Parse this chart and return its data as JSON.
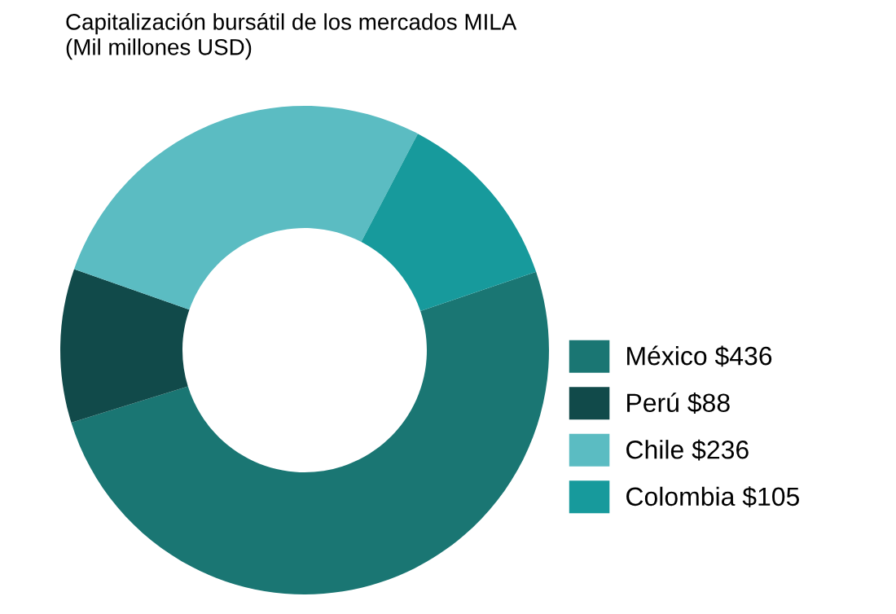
{
  "chart_data": {
    "type": "donut",
    "title": "Capitalización bursátil de los mercados MILA\n(Mil millones USD)",
    "categories": [
      "México",
      "Perú",
      "Chile",
      "Colombia"
    ],
    "values": [
      436,
      88,
      236,
      105
    ],
    "value_labels": [
      "$436",
      "$88",
      "$236",
      "$105"
    ],
    "colors": [
      "#1a7673",
      "#114a4a",
      "#5bbcc2",
      "#179a9c"
    ],
    "legend": "right"
  }
}
